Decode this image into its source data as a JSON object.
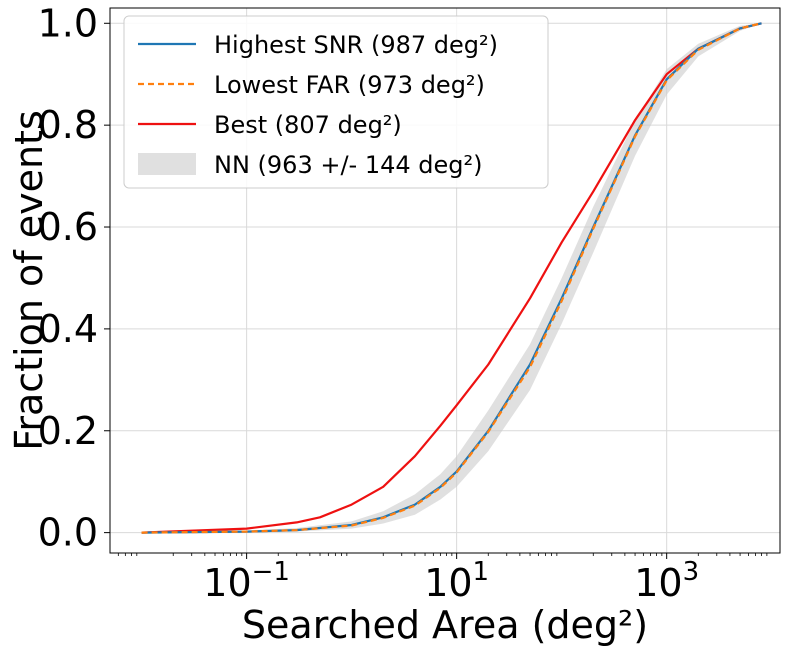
{
  "chart_data": {
    "type": "line",
    "xlabel": "Searched Area (deg²)",
    "ylabel": "Fraction of events",
    "x_scale": "log",
    "xlim": [
      0.005,
      12000
    ],
    "ylim": [
      -0.04,
      1.03
    ],
    "grid": true,
    "legend_position": "top-left",
    "x_ticks": [
      {
        "value": 0.1,
        "base": "10",
        "exp": "−1"
      },
      {
        "value": 10,
        "base": "10",
        "exp": "1"
      },
      {
        "value": 1000,
        "base": "10",
        "exp": "3"
      }
    ],
    "y_ticks": [
      {
        "value": 0.0,
        "label": "0.0"
      },
      {
        "value": 0.2,
        "label": "0.2"
      },
      {
        "value": 0.4,
        "label": "0.4"
      },
      {
        "value": 0.6,
        "label": "0.6"
      },
      {
        "value": 0.8,
        "label": "0.8"
      },
      {
        "value": 1.0,
        "label": "1.0"
      }
    ],
    "series": [
      {
        "name": "Highest SNR (987 deg²)",
        "style": "solid",
        "color": "#1f77b4",
        "x": [
          0.01,
          0.1,
          0.3,
          1,
          2,
          4,
          7,
          10,
          20,
          50,
          100,
          200,
          500,
          1000,
          2000,
          5000,
          8000
        ],
        "y": [
          0.0,
          0.002,
          0.005,
          0.015,
          0.03,
          0.055,
          0.09,
          0.12,
          0.2,
          0.33,
          0.46,
          0.6,
          0.78,
          0.89,
          0.95,
          0.99,
          1.0
        ]
      },
      {
        "name": "Lowest FAR (973 deg²)",
        "style": "dashed",
        "color": "#ff7f0e",
        "x": [
          0.01,
          0.1,
          0.3,
          1,
          2,
          4,
          7,
          10,
          20,
          50,
          100,
          200,
          500,
          1000,
          2000,
          5000,
          8000
        ],
        "y": [
          0.0,
          0.002,
          0.005,
          0.014,
          0.029,
          0.053,
          0.088,
          0.118,
          0.198,
          0.325,
          0.455,
          0.597,
          0.778,
          0.888,
          0.948,
          0.99,
          1.0
        ]
      },
      {
        "name": "Best (807 deg²)",
        "style": "solid",
        "color": "#ee1111",
        "x": [
          0.01,
          0.1,
          0.3,
          0.5,
          1,
          2,
          4,
          7,
          10,
          20,
          50,
          100,
          200,
          500,
          1000,
          2000,
          5000,
          8000
        ],
        "y": [
          0.0,
          0.008,
          0.02,
          0.03,
          0.055,
          0.09,
          0.15,
          0.21,
          0.25,
          0.33,
          0.46,
          0.57,
          0.67,
          0.81,
          0.9,
          0.95,
          0.99,
          1.0
        ]
      }
    ],
    "band": {
      "name": "NN (963 +/- 144 deg²)",
      "color": "#cccccc",
      "x": [
        0.01,
        0.1,
        0.3,
        1,
        2,
        4,
        7,
        10,
        20,
        50,
        100,
        200,
        500,
        1000,
        2000,
        5000,
        8000
      ],
      "y_low": [
        0.0,
        0.0,
        0.002,
        0.008,
        0.018,
        0.035,
        0.065,
        0.09,
        0.16,
        0.28,
        0.41,
        0.55,
        0.74,
        0.86,
        0.935,
        0.985,
        1.0
      ],
      "y_high": [
        0.0,
        0.004,
        0.009,
        0.022,
        0.042,
        0.075,
        0.115,
        0.15,
        0.24,
        0.37,
        0.5,
        0.64,
        0.81,
        0.91,
        0.96,
        0.995,
        1.0
      ]
    }
  }
}
